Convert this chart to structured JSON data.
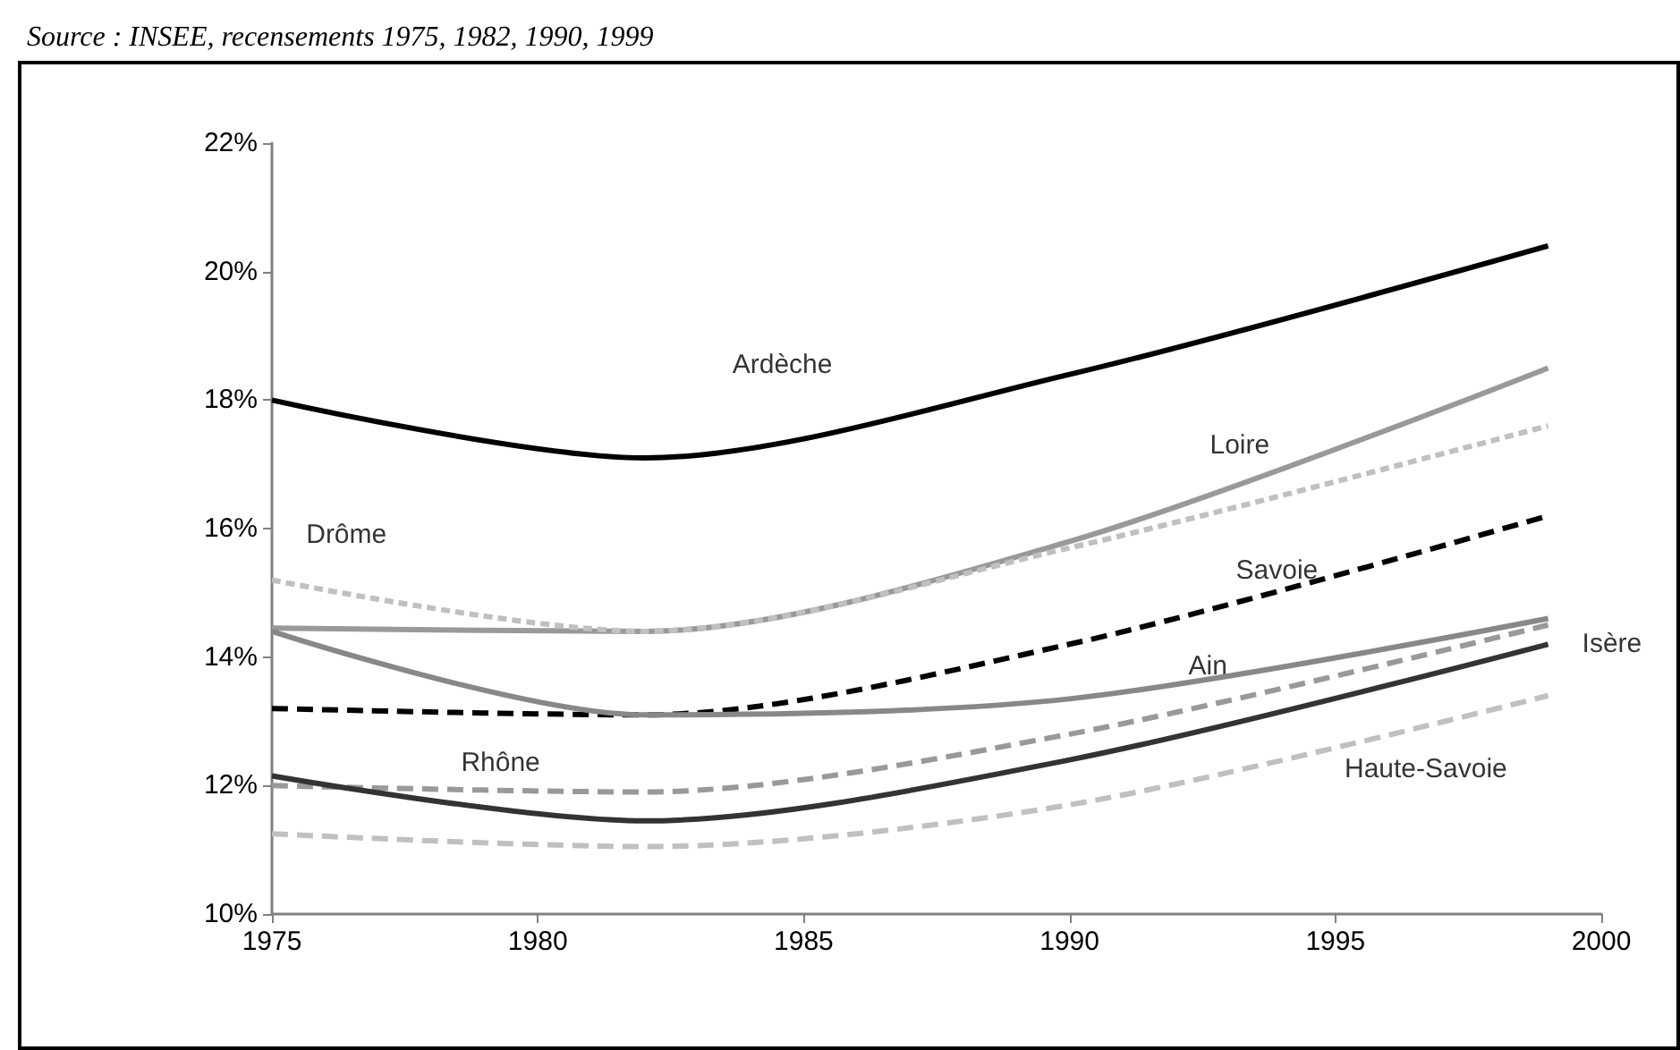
{
  "chart_data": {
    "type": "line",
    "annotations": [
      "Source : INSEE, recensements 1975, 1982, 1990, 1999"
    ],
    "x": [
      1975,
      1982,
      1990,
      1999
    ],
    "xlim": [
      1975,
      2000
    ],
    "xticks": [
      1975,
      1980,
      1985,
      1990,
      1995,
      2000
    ],
    "ylim": [
      10,
      22
    ],
    "yticks": [
      {
        "value": 10,
        "label": "10%"
      },
      {
        "value": 12,
        "label": "12%"
      },
      {
        "value": 14,
        "label": "14%"
      },
      {
        "value": 16,
        "label": "16%"
      },
      {
        "value": 18,
        "label": "18%"
      },
      {
        "value": 20,
        "label": "20%"
      },
      {
        "value": 22,
        "label": "22%"
      }
    ],
    "grid": false,
    "legend": false,
    "marker": "none",
    "series": [
      {
        "name": "Ardèche",
        "color": "#000000",
        "line_style": "solid",
        "values": [
          18.0,
          17.1,
          18.4,
          20.4
        ]
      },
      {
        "name": "Loire",
        "color": "#999999",
        "line_style": "solid",
        "values": [
          14.45,
          14.4,
          15.8,
          18.5
        ]
      },
      {
        "name": "Drôme",
        "color": "#c0c0c0",
        "line_style": "dotted",
        "values": [
          15.2,
          14.4,
          15.7,
          17.6
        ]
      },
      {
        "name": "Savoie",
        "color": "#000000",
        "line_style": "dashed",
        "values": [
          13.2,
          13.1,
          14.2,
          16.2
        ]
      },
      {
        "name": "Ain",
        "color": "#888888",
        "line_style": "solid",
        "values": [
          14.4,
          13.1,
          13.35,
          14.6
        ]
      },
      {
        "name": "Rhône",
        "color": "#999999",
        "line_style": "dashed",
        "values": [
          12.0,
          11.9,
          12.8,
          14.5
        ]
      },
      {
        "name": "Isère",
        "color": "#333333",
        "line_style": "solid",
        "values": [
          12.15,
          11.45,
          12.4,
          14.2
        ]
      },
      {
        "name": "Haute-Savoie",
        "color": "#c0c0c0",
        "line_style": "dashed",
        "values": [
          11.25,
          11.05,
          11.7,
          13.4
        ]
      }
    ]
  }
}
